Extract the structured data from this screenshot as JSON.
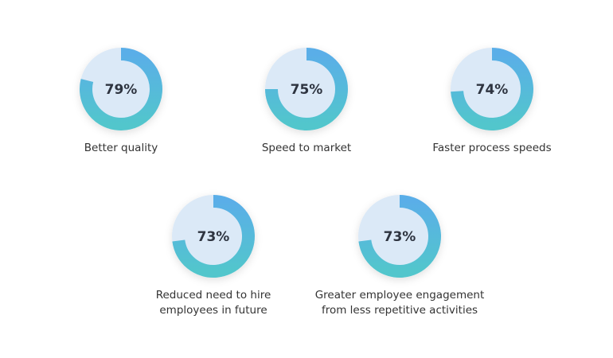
{
  "chart_data": [
    {
      "type": "donut",
      "title": "Better quality",
      "values": [
        79
      ],
      "value_labels": [
        "79%"
      ],
      "colors": [
        "#5aaee8",
        "#52c6cc"
      ]
    },
    {
      "type": "donut",
      "title": "Speed to market",
      "values": [
        75
      ],
      "value_labels": [
        "75%"
      ],
      "colors": [
        "#5aaee8",
        "#52c6cc"
      ]
    },
    {
      "type": "donut",
      "title": "Faster process speeds",
      "values": [
        74
      ],
      "value_labels": [
        "74%"
      ],
      "colors": [
        "#5aaee8",
        "#52c6cc"
      ]
    },
    {
      "type": "donut",
      "title": "Reduced need to hire employees in future",
      "values": [
        73
      ],
      "value_labels": [
        "73%"
      ],
      "colors": [
        "#5aaee8",
        "#52c6cc"
      ]
    },
    {
      "type": "donut",
      "title": "Greater employee engagement from less repetitive activities",
      "values": [
        73
      ],
      "value_labels": [
        "73%"
      ],
      "colors": [
        "#5aaee8",
        "#52c6cc"
      ]
    }
  ]
}
